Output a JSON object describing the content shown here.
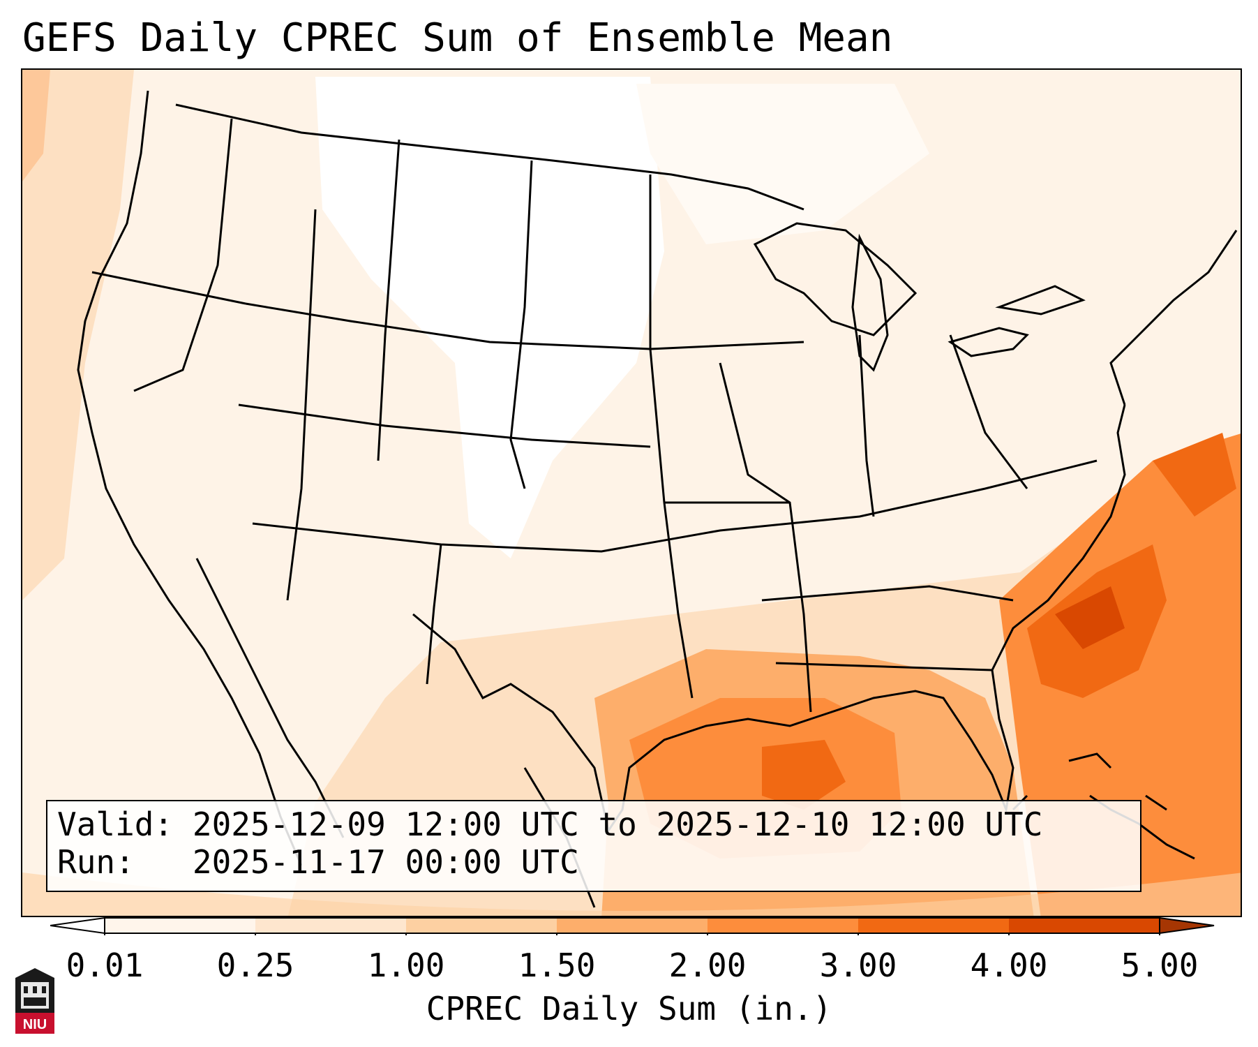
{
  "title": "GEFS Daily CPREC Sum of Ensemble Mean",
  "info": {
    "valid_label": "Valid:",
    "valid_value": "2025-12-09 12:00 UTC to 2025-12-10 12:00 UTC",
    "run_label": "Run:",
    "run_value": "2025-11-17 00:00 UTC"
  },
  "colorbar": {
    "label": "CPREC Daily Sum (in.)",
    "ticks": [
      "0.01",
      "0.25",
      "1.00",
      "1.50",
      "2.00",
      "3.00",
      "4.00",
      "5.00"
    ],
    "colors": [
      "#fff5eb",
      "#fee6ce",
      "#fdd0a2",
      "#fdae6b",
      "#fd8d3c",
      "#f16913",
      "#d94801",
      "#a63603"
    ],
    "extend": "both"
  },
  "logo": {
    "text": "NIU",
    "icon": "niu-logo-icon",
    "color": "#c8102e"
  },
  "map": {
    "region": "Continental United States and surroundings",
    "colors": {
      "light": "#fff5eb",
      "low": "#fee6ce",
      "mid": "#fdd0a2",
      "orange": "#fdae6b",
      "deep": "#fd8d3c",
      "darker": "#f16913",
      "darkest": "#d94801"
    }
  }
}
